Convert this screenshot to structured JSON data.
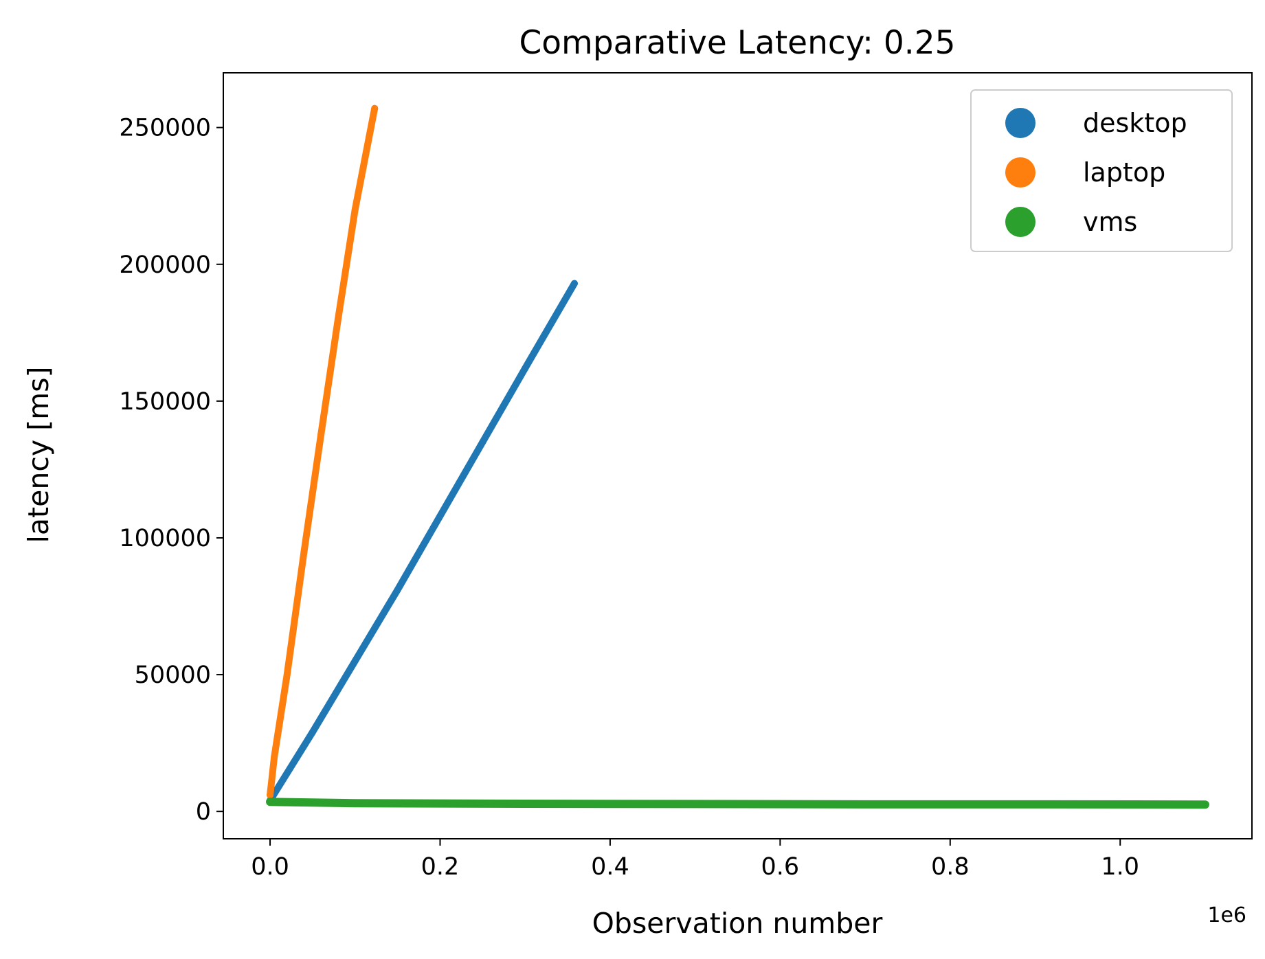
{
  "chart_data": {
    "type": "scatter",
    "title": "Comparative Latency: 0.25",
    "xlabel": "Observation number",
    "ylabel": "latency [ms]",
    "x_offset_label": "1e6",
    "xlim": [
      -0.055,
      1.155
    ],
    "ylim": [
      -10000,
      270000
    ],
    "x_scale_factor": 1000000,
    "x_ticks": [
      0.0,
      0.2,
      0.4,
      0.6,
      0.8,
      1.0
    ],
    "x_tick_labels": [
      "0.0",
      "0.2",
      "0.4",
      "0.6",
      "0.8",
      "1.0"
    ],
    "y_ticks": [
      0,
      50000,
      100000,
      150000,
      200000,
      250000
    ],
    "y_tick_labels": [
      "0",
      "50000",
      "100000",
      "150000",
      "200000",
      "250000"
    ],
    "grid": false,
    "legend_position": "top-right",
    "series": [
      {
        "name": "desktop",
        "color": "#1f77b4",
        "x": [
          0,
          0.05,
          0.1,
          0.15,
          0.2,
          0.25,
          0.3,
          0.358
        ],
        "y": [
          4000,
          29000,
          55000,
          81000,
          108000,
          135000,
          162000,
          193000
        ]
      },
      {
        "name": "laptop",
        "color": "#ff7f0e",
        "x": [
          0,
          0.005,
          0.02,
          0.04,
          0.06,
          0.08,
          0.1,
          0.123
        ],
        "y": [
          6000,
          20000,
          50000,
          95000,
          138000,
          180000,
          220000,
          257000
        ]
      },
      {
        "name": "vms",
        "color": "#2ca02c",
        "x": [
          0,
          0.1,
          0.3,
          0.5,
          0.7,
          0.9,
          1.1
        ],
        "y": [
          3500,
          3000,
          2800,
          2700,
          2600,
          2600,
          2500
        ]
      }
    ]
  }
}
